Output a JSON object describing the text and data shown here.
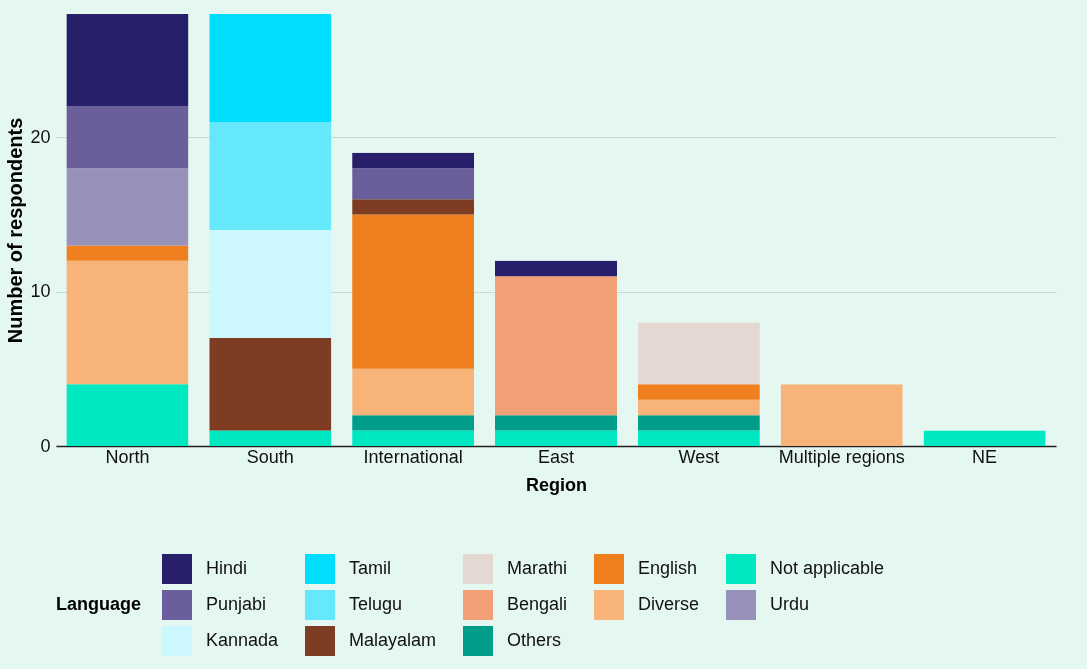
{
  "chart_data": {
    "type": "bar",
    "stacked": true,
    "xlabel": "Region",
    "ylabel": "Number of respondents",
    "legend_title": "Language",
    "legend": "bottom",
    "grid": "y",
    "categories": [
      "North",
      "South",
      "International",
      "East",
      "West",
      "Multiple regions",
      "NE"
    ],
    "ylim": [
      0,
      28
    ],
    "yticks": [
      0,
      10,
      20
    ],
    "series": [
      {
        "name": "Not applicable",
        "color": "#00e8c2",
        "values": [
          4,
          1,
          1,
          1,
          1,
          null,
          1
        ]
      },
      {
        "name": "Others",
        "color": "#009e8a",
        "values": [
          null,
          null,
          1,
          1,
          1,
          null,
          null
        ]
      },
      {
        "name": "Diverse",
        "color": "#f7b378",
        "values": [
          8,
          null,
          3,
          null,
          1,
          4,
          null
        ]
      },
      {
        "name": "English",
        "color": "#ef7f1f",
        "values": [
          1,
          null,
          10,
          null,
          1,
          null,
          null
        ]
      },
      {
        "name": "Malayalam",
        "color": "#7e3c22",
        "values": [
          null,
          6,
          1,
          null,
          null,
          null,
          null
        ]
      },
      {
        "name": "Bengali",
        "color": "#f2a177",
        "values": [
          null,
          null,
          null,
          9,
          null,
          null,
          null
        ]
      },
      {
        "name": "Marathi",
        "color": "#e5d8d3",
        "values": [
          null,
          null,
          null,
          null,
          4,
          null,
          null
        ]
      },
      {
        "name": "Kannada",
        "color": "#ccf7fd",
        "values": [
          null,
          7,
          null,
          null,
          null,
          null,
          null
        ]
      },
      {
        "name": "Telugu",
        "color": "#66e8fc",
        "values": [
          null,
          7,
          null,
          null,
          null,
          null,
          null
        ]
      },
      {
        "name": "Tamil",
        "color": "#00ddff",
        "values": [
          null,
          7,
          null,
          null,
          null,
          null,
          null
        ]
      },
      {
        "name": "Urdu",
        "color": "#9892bb",
        "values": [
          5,
          null,
          null,
          null,
          null,
          null,
          null
        ]
      },
      {
        "name": "Punjabi",
        "color": "#6a5f9a",
        "values": [
          4,
          null,
          2,
          null,
          null,
          null,
          null
        ]
      },
      {
        "name": "Hindi",
        "color": "#271f6a",
        "values": [
          6,
          null,
          1,
          1,
          null,
          null,
          null
        ]
      }
    ]
  }
}
